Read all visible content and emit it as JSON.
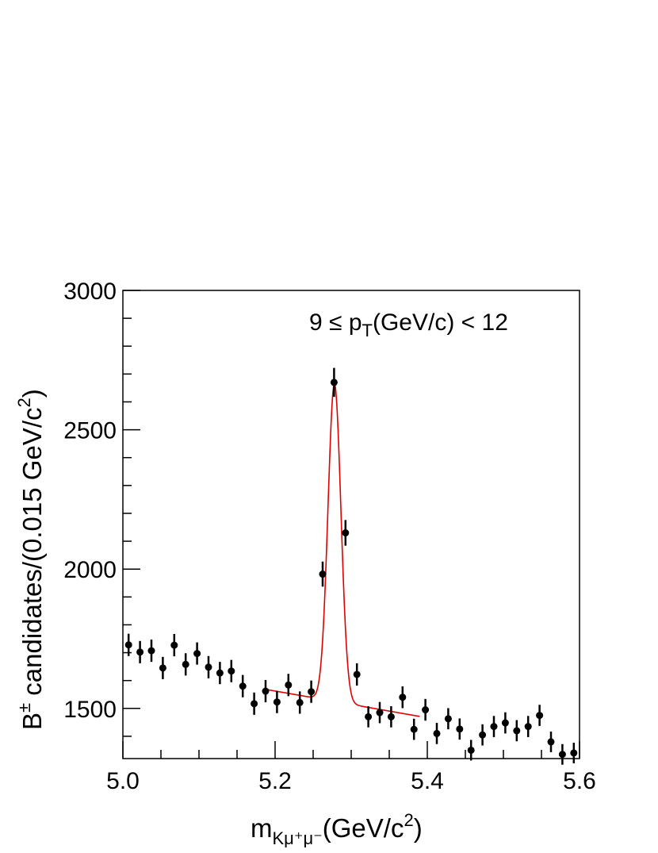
{
  "chart_data": {
    "type": "scatter",
    "title": "",
    "annotation": {
      "prefix": "9 ≤ p",
      "sub": "T",
      "suffix": "(GeV/c) < 12"
    },
    "xlabel": {
      "main": "m",
      "sub": "Kμ⁺μ⁻",
      "unit": "(GeV/c",
      "sup": "2",
      "close": ")"
    },
    "ylabel": {
      "B": "B",
      "pm": "±",
      "text": " candidates/(0.015 GeV/c",
      "sup": "2",
      "close": ")"
    },
    "xlim": [
      5.0,
      5.6
    ],
    "ylim": [
      1320,
      3000
    ],
    "x_ticks": [
      "5.0",
      "5.2",
      "5.4",
      "5.6"
    ],
    "y_ticks": [
      "1500",
      "2000",
      "2500",
      "3000"
    ],
    "grid": false,
    "marker_color": "#000000",
    "fit_color": "#e00000",
    "series": [
      {
        "x": [
          5.0075,
          5.0225,
          5.0375,
          5.0525,
          5.0675,
          5.0825,
          5.0975,
          5.1125,
          5.1275,
          5.1425,
          5.1575,
          5.1725,
          5.1875,
          5.2025,
          5.2175,
          5.2325,
          5.2475,
          5.2625,
          5.2775,
          5.2925,
          5.3075,
          5.3225,
          5.3375,
          5.3525,
          5.3675,
          5.3825,
          5.3975,
          5.4125,
          5.4275,
          5.4425,
          5.4575,
          5.4725,
          5.4875,
          5.5025,
          5.5175,
          5.5325,
          5.5475,
          5.5625,
          5.5775,
          5.5925
        ],
        "y": [
          1728,
          1702,
          1707,
          1645,
          1727,
          1658,
          1697,
          1648,
          1627,
          1634,
          1580,
          1517,
          1562,
          1523,
          1584,
          1521,
          1560,
          1982,
          2670,
          2130,
          1622,
          1470,
          1485,
          1470,
          1540,
          1425,
          1495,
          1410,
          1463,
          1426,
          1350,
          1405,
          1435,
          1448,
          1420,
          1435,
          1475,
          1380,
          1335,
          1340
        ],
        "yerr": [
          40,
          40,
          40,
          40,
          40,
          40,
          40,
          40,
          40,
          40,
          40,
          40,
          40,
          40,
          40,
          40,
          40,
          45,
          52,
          46,
          40,
          38,
          38,
          38,
          39,
          38,
          39,
          38,
          38,
          38,
          37,
          38,
          38,
          38,
          38,
          38,
          38,
          37,
          37,
          37
        ]
      }
    ],
    "fit": {
      "x_range": [
        5.185,
        5.39
      ],
      "background": {
        "a": 1548,
        "b": -480,
        "x0": 5.23
      },
      "gaussian": {
        "amp": 1140,
        "mean": 5.278,
        "sigma": 0.0085
      }
    }
  }
}
